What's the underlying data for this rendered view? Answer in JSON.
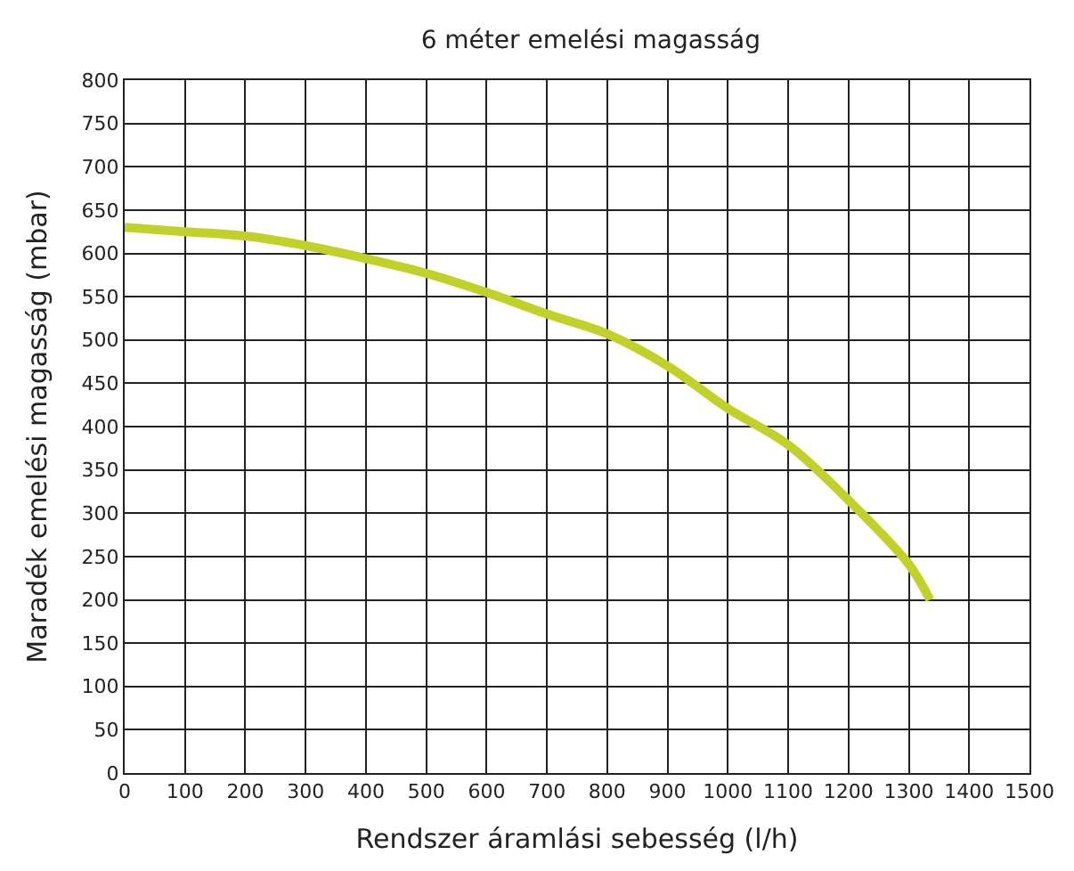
{
  "chart_data": {
    "type": "line",
    "title": "6 méter emelési magasság",
    "xlabel": "Rendszer áramlási sebesség (l/h)",
    "ylabel": "Maradék emelési magasság (mbar)",
    "x": [
      0,
      100,
      200,
      300,
      400,
      500,
      600,
      700,
      800,
      900,
      1000,
      1100,
      1200,
      1300,
      1335
    ],
    "series": [
      {
        "color": "#c2d12a",
        "values": [
          630,
          625,
          620,
          609,
          594,
          577,
          555,
          530,
          507,
          470,
          421,
          379,
          315,
          241,
          200
        ]
      }
    ],
    "xlim": [
      0,
      1500
    ],
    "xticks": [
      0,
      100,
      200,
      300,
      400,
      500,
      600,
      700,
      800,
      900,
      1000,
      1100,
      1200,
      1300,
      1400,
      1500
    ],
    "ylim": [
      0,
      800
    ],
    "yticks": [
      0,
      50,
      100,
      150,
      200,
      250,
      300,
      350,
      400,
      450,
      500,
      550,
      600,
      650,
      700,
      750,
      800
    ],
    "grid": true,
    "marker": "none",
    "line_style": "solid"
  }
}
